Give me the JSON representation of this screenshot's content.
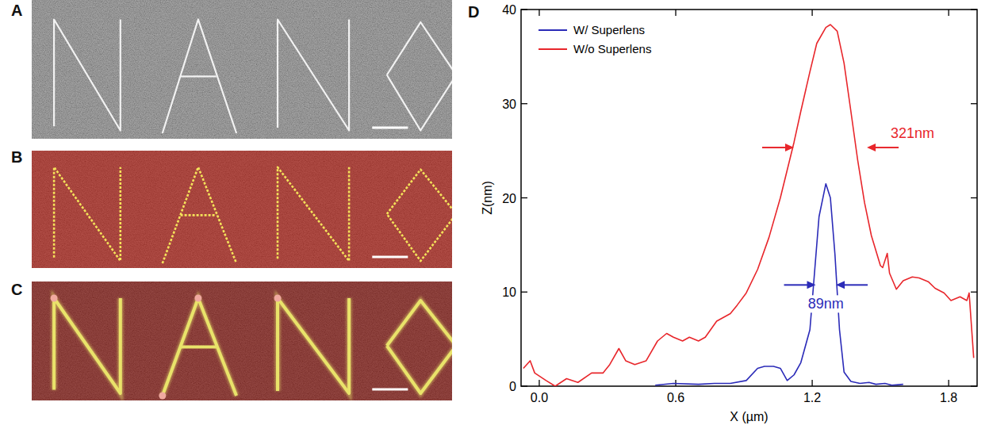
{
  "panels": [
    {
      "label": "A"
    },
    {
      "label": "B"
    },
    {
      "label": "C"
    },
    {
      "label": "D"
    }
  ],
  "chart_data": {
    "type": "line",
    "x_label": "X (µm)",
    "y_label": "Z(nm)",
    "xlim": [
      -0.08,
      1.925
    ],
    "ylim": [
      0,
      40
    ],
    "xticks": [
      {
        "value": 0,
        "label": "0.0"
      },
      0.6,
      1.2,
      1.8
    ],
    "yticks": [
      0,
      10,
      20,
      30,
      40
    ],
    "grid": false,
    "legend": "upper left",
    "series": [
      {
        "name": "W/ Superlens",
        "color": "#2b2bb8",
        "x": [
          0.51,
          0.59,
          0.7,
          0.77,
          0.84,
          0.91,
          0.96,
          0.99,
          1.03,
          1.06,
          1.09,
          1.12,
          1.15,
          1.19,
          1.21,
          1.23,
          1.26,
          1.28,
          1.3,
          1.32,
          1.34,
          1.37,
          1.41,
          1.45,
          1.48,
          1.52,
          1.55,
          1.6
        ],
        "values": [
          0.1,
          0.3,
          0.2,
          0.3,
          0.3,
          0.6,
          1.9,
          2.1,
          2.1,
          1.9,
          0.6,
          1.2,
          2.5,
          6.0,
          12.0,
          18.0,
          21.5,
          20.0,
          14.0,
          6.0,
          1.5,
          0.5,
          0.3,
          0.4,
          0.2,
          0.3,
          0.1,
          0.2
        ],
        "fwhm": {
          "value": 0.089,
          "label": "89nm"
        }
      },
      {
        "name": "W/o Superlens",
        "color": "#e8262b",
        "x": [
          -0.07,
          -0.04,
          -0.02,
          0.03,
          0.07,
          0.12,
          0.17,
          0.23,
          0.28,
          0.31,
          0.35,
          0.38,
          0.42,
          0.47,
          0.52,
          0.56,
          0.59,
          0.63,
          0.66,
          0.7,
          0.73,
          0.78,
          0.84,
          0.87,
          0.91,
          0.96,
          1.01,
          1.06,
          1.12,
          1.15,
          1.19,
          1.22,
          1.26,
          1.28,
          1.31,
          1.34,
          1.37,
          1.4,
          1.43,
          1.46,
          1.5,
          1.51,
          1.53,
          1.54,
          1.57,
          1.6,
          1.64,
          1.67,
          1.71,
          1.74,
          1.78,
          1.81,
          1.85,
          1.88,
          1.89,
          1.91
        ],
        "values": [
          1.9,
          2.7,
          1.4,
          0.6,
          0.0,
          0.8,
          0.4,
          1.4,
          1.4,
          2.3,
          4.0,
          2.7,
          2.3,
          2.7,
          4.8,
          5.6,
          5.2,
          4.8,
          5.2,
          4.8,
          5.2,
          6.9,
          7.7,
          8.6,
          9.9,
          12.4,
          15.8,
          20.0,
          25.9,
          29.2,
          33.4,
          36.4,
          38.1,
          38.4,
          37.7,
          34.3,
          29.2,
          24.0,
          19.5,
          16.0,
          12.8,
          12.6,
          14.1,
          12.0,
          10.3,
          11.2,
          11.6,
          11.5,
          11.1,
          10.4,
          9.9,
          9.1,
          9.5,
          9.1,
          9.9,
          3.0
        ],
        "fwhm": {
          "value": 0.321,
          "label": "321nm"
        }
      }
    ]
  }
}
